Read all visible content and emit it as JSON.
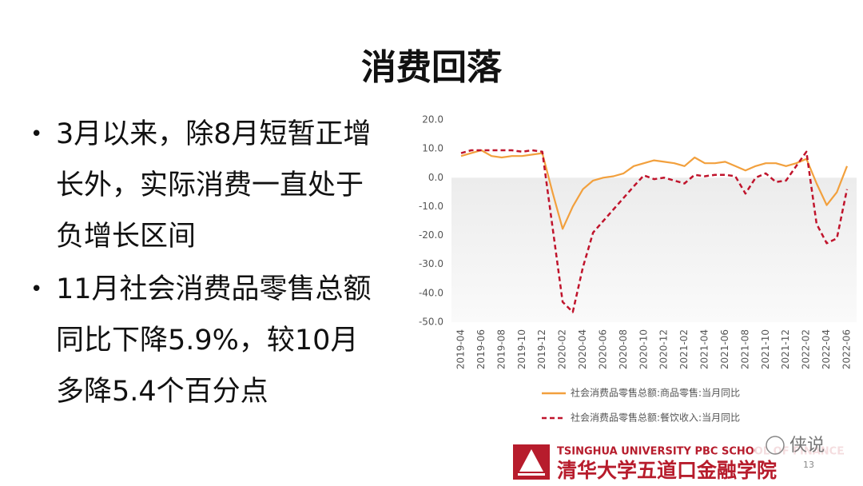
{
  "title": "消费回落",
  "bullets": [
    "3月以来，除8月短暂正增长外，实际消费一直处于负增长区间",
    "11月社会消费品零售总额同比下降5.9%，较10月多降5.4个百分点"
  ],
  "chart_data": {
    "type": "line",
    "categories": [
      "2019-04",
      null,
      "2019-06",
      null,
      "2019-08",
      null,
      "2019-10",
      null,
      "2019-12",
      null,
      "2020-02",
      null,
      "2020-04",
      null,
      "2020-06",
      null,
      "2020-08",
      null,
      "2020-10",
      null,
      "2020-12",
      null,
      "2021-02",
      null,
      "2021-04",
      null,
      "2021-06",
      null,
      "2021-08",
      null,
      "2021-10",
      null,
      "2021-12",
      null,
      "2022-02",
      null,
      "2022-04",
      null,
      "2022-06"
    ],
    "series": [
      {
        "name": "社会消费品零售总额:商品零售:当月同比",
        "color": "#f2a03d",
        "dashed": false,
        "values": [
          7.5,
          8.5,
          9.5,
          7.5,
          7,
          7.5,
          7.5,
          8,
          8.5,
          -5,
          -17.7,
          -10,
          -4,
          -1,
          0,
          0.5,
          1.5,
          4,
          5,
          6,
          5.5,
          5,
          4,
          7,
          5,
          5,
          5.5,
          4,
          2.5,
          4,
          5,
          5,
          4,
          5,
          6.5,
          -2,
          -9.5,
          -5,
          4
        ]
      },
      {
        "name": "社会消费品零售总额:餐饮收入:当月同比",
        "color": "#c0142c",
        "dashed": true,
        "values": [
          8.5,
          9.5,
          9.5,
          9.5,
          9.5,
          9.5,
          9,
          9.5,
          9,
          -17,
          -43,
          -46.5,
          -31,
          -19,
          -15,
          -11,
          -7,
          -3,
          0.8,
          -0.5,
          0,
          -1,
          -2,
          1,
          0.5,
          1,
          1,
          0.5,
          -5.5,
          0,
          1.5,
          -1.5,
          -1,
          4,
          9,
          -16,
          -22.7,
          -21,
          -4
        ]
      }
    ],
    "ylim": [
      -50,
      20
    ],
    "yticks": [
      {
        "value": 20,
        "label": "20.0"
      },
      {
        "value": 10,
        "label": "10.0"
      },
      {
        "value": 0,
        "label": "0.0"
      },
      {
        "value": -10,
        "label": "-10.0"
      },
      {
        "value": -20,
        "label": "-20.0"
      },
      {
        "value": -30,
        "label": "-30.0"
      },
      {
        "value": -40,
        "label": "-40.0"
      },
      {
        "value": -50,
        "label": "-50.0"
      }
    ],
    "grid": false
  },
  "footer": {
    "english": "TSINGHUA UNIVERSITY PBC SCHOOL OF FINANCE",
    "chinese": "清华大学五道口金融学院",
    "page": "13",
    "watermark": "侠说"
  }
}
